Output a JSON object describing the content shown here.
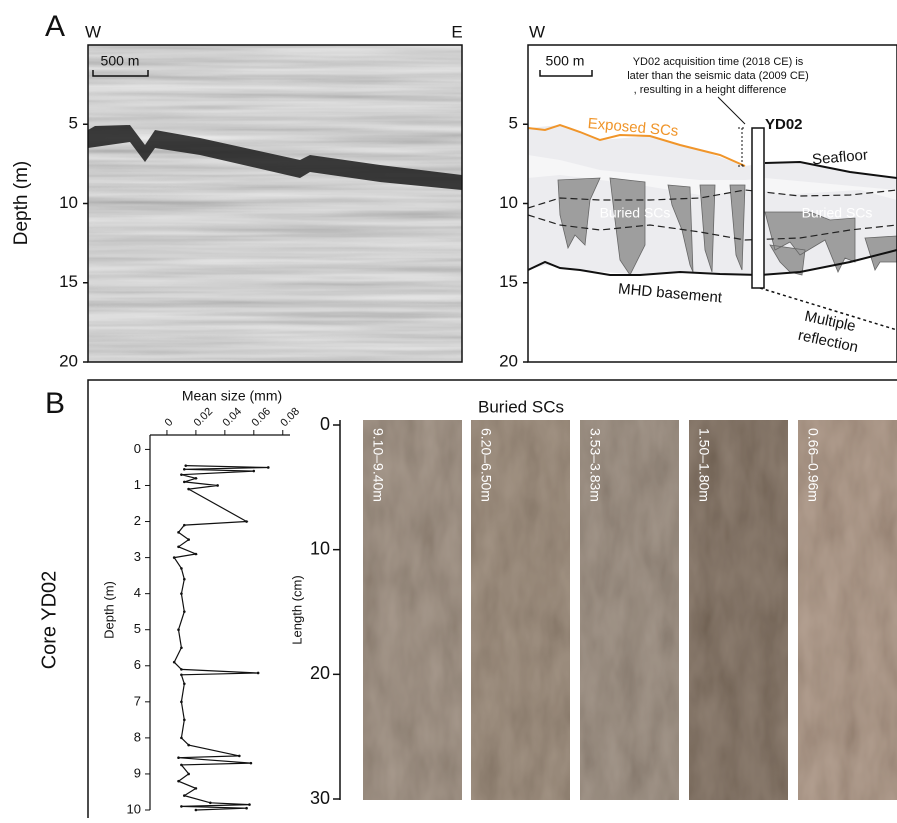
{
  "panel_a": {
    "label": "A",
    "y_label": "Depth (m)",
    "ylim": [
      0,
      20
    ],
    "yticks": [
      5,
      10,
      15,
      20
    ],
    "seismic": {
      "west": "W",
      "east": "E",
      "scale_bar": "500 m"
    },
    "interpretation": {
      "west": "W",
      "scale_bar": "500 m",
      "note": [
        "YD02 acquisition time (2018 CE) is",
        "later than the seismic data (2009 CE)",
        ", resulting in a height difference"
      ],
      "core": "YD02",
      "exposed": "Exposed SCs",
      "seafloor": "Seafloor",
      "buried": [
        "Buried SCs",
        "Buried SCs"
      ],
      "basement": "MHD basement",
      "multiple": [
        "Multiple",
        "reflection"
      ]
    }
  },
  "panel_b": {
    "label": "B",
    "core_label": "Core YD02"
  },
  "chart_data": {
    "type": "line",
    "x_label": "Mean size (mm)",
    "y_label": "Depth (m)",
    "color": "#111111",
    "depth": [
      0.45,
      0.5,
      0.55,
      0.6,
      0.7,
      0.8,
      0.9,
      1.0,
      1.1,
      2.0,
      2.1,
      2.3,
      2.5,
      2.7,
      2.9,
      3.0,
      3.3,
      3.6,
      4.0,
      4.5,
      5.0,
      5.5,
      5.9,
      6.1,
      6.2,
      6.25,
      6.5,
      7.0,
      7.5,
      8.0,
      8.2,
      8.5,
      8.55,
      8.7,
      8.75,
      9.0,
      9.2,
      9.4,
      9.6,
      9.8,
      9.85,
      9.9,
      9.95,
      10.0
    ],
    "values": [
      0.013,
      0.07,
      0.012,
      0.06,
      0.01,
      0.02,
      0.012,
      0.035,
      0.015,
      0.055,
      0.012,
      0.008,
      0.015,
      0.008,
      0.02,
      0.005,
      0.01,
      0.012,
      0.01,
      0.012,
      0.008,
      0.01,
      0.005,
      0.01,
      0.063,
      0.01,
      0.012,
      0.01,
      0.012,
      0.01,
      0.015,
      0.05,
      0.008,
      0.058,
      0.01,
      0.015,
      0.008,
      0.02,
      0.012,
      0.03,
      0.057,
      0.01,
      0.055,
      0.02
    ],
    "xlim": [
      -0.0117,
      0.085
    ],
    "xticks": [
      0,
      0.02,
      0.04,
      0.06,
      0.08
    ],
    "ylim": [
      -0.4,
      10
    ],
    "yticks": [
      0,
      1,
      2,
      3,
      4,
      5,
      6,
      7,
      8,
      9,
      10
    ]
  },
  "core_photos": {
    "title": "Buried SCs",
    "y_label": "Length (cm)",
    "ylim": [
      0,
      30
    ],
    "yticks": [
      0,
      10,
      20,
      30
    ],
    "sections": [
      "9.10–9.40m",
      "6.20–6.50m",
      "3.53–3.83m",
      "1.50–1.80m",
      "0.66–0.96m"
    ]
  }
}
